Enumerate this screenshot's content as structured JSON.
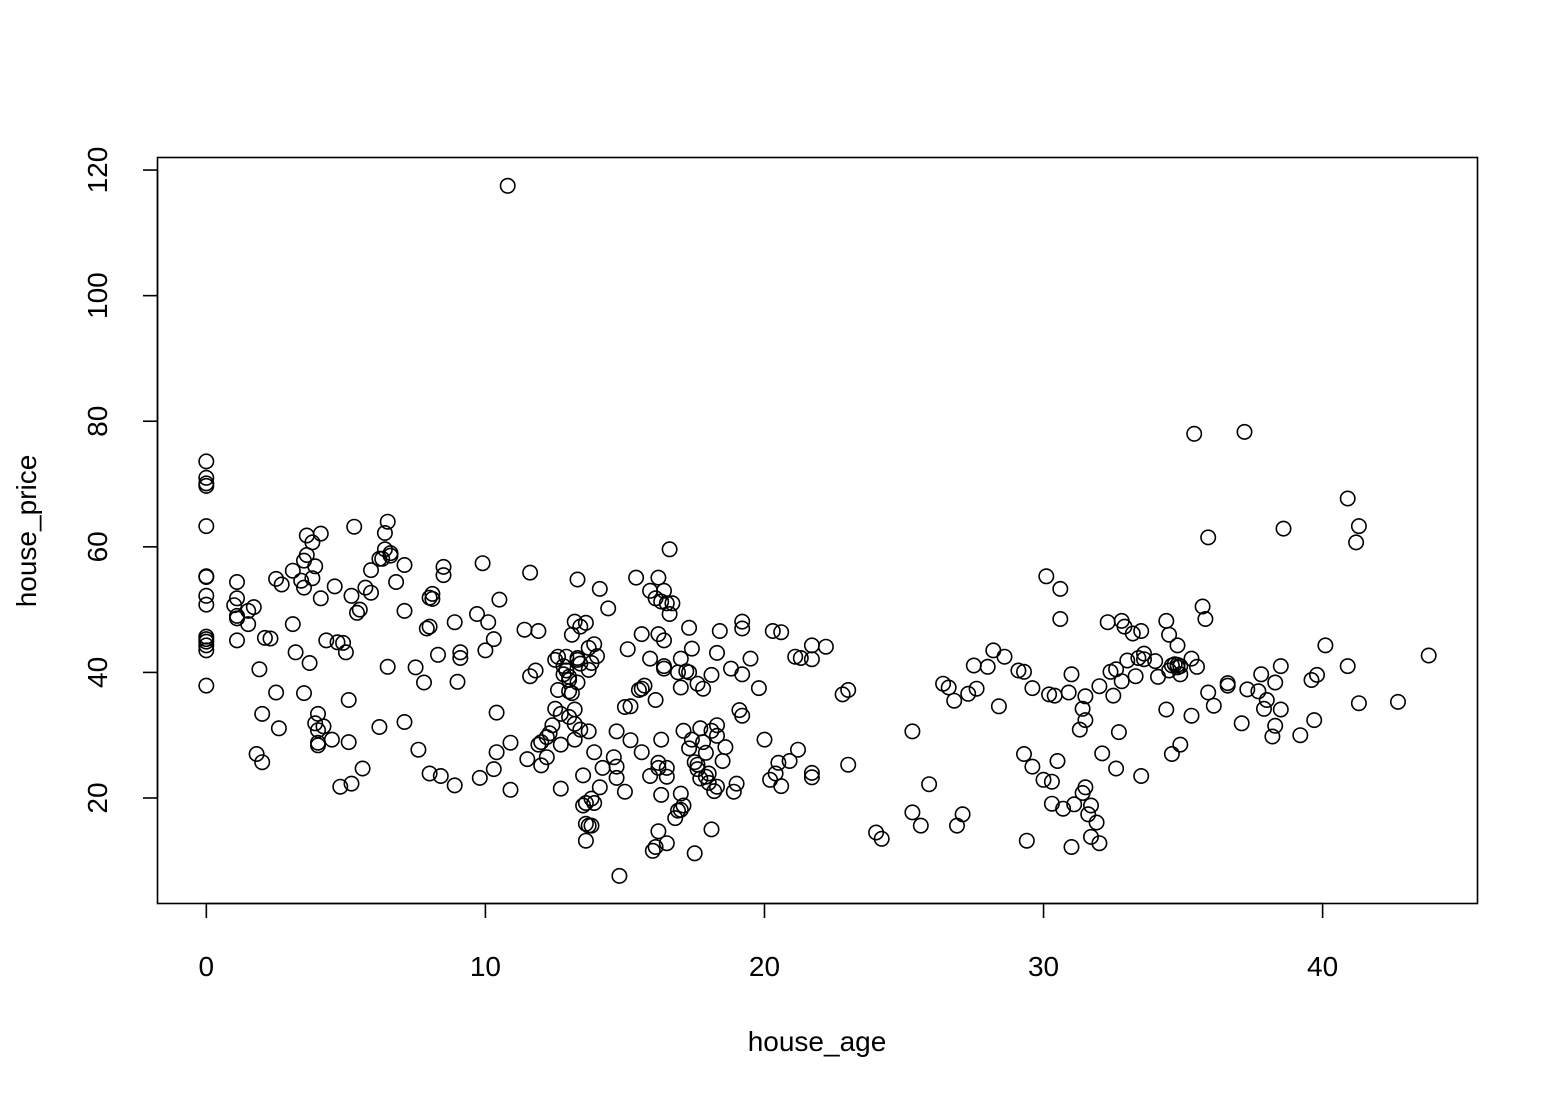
{
  "chart_data": {
    "type": "scatter",
    "title": "",
    "xlabel": "house_age",
    "ylabel": "house_price",
    "xlim": [
      -1.75,
      45.55
    ],
    "ylim": [
      3.2,
      122.0
    ],
    "x_ticks": [
      0,
      10,
      20,
      30,
      40
    ],
    "y_ticks": [
      20,
      40,
      60,
      80,
      100,
      120
    ],
    "grid": false,
    "legend": "none",
    "marker": "open-circle",
    "colors": {
      "points": "#000000",
      "axes": "#000000",
      "background": "#ffffff"
    },
    "points": [
      [
        0,
        73.6
      ],
      [
        0,
        71.0
      ],
      [
        0,
        70.1
      ],
      [
        0,
        69.7
      ],
      [
        0,
        63.3
      ],
      [
        0,
        55.3
      ],
      [
        0,
        55.2
      ],
      [
        0,
        52.2
      ],
      [
        0,
        50.8
      ],
      [
        0,
        45.7
      ],
      [
        0,
        45.3
      ],
      [
        0,
        44.9
      ],
      [
        0,
        44.3
      ],
      [
        0,
        43.5
      ],
      [
        0,
        37.9
      ],
      [
        1.0,
        50.7
      ],
      [
        1.1,
        54.4
      ],
      [
        1.1,
        51.8
      ],
      [
        1.1,
        49.0
      ],
      [
        1.1,
        48.6
      ],
      [
        1.1,
        45.1
      ],
      [
        1.5,
        47.7
      ],
      [
        1.5,
        49.8
      ],
      [
        1.7,
        50.4
      ],
      [
        1.8,
        27.0
      ],
      [
        1.9,
        40.5
      ],
      [
        2.0,
        33.4
      ],
      [
        2.0,
        25.7
      ],
      [
        2.1,
        45.5
      ],
      [
        2.3,
        45.4
      ],
      [
        2.5,
        54.9
      ],
      [
        2.5,
        36.8
      ],
      [
        2.6,
        31.1
      ],
      [
        2.7,
        54.0
      ],
      [
        3.1,
        56.2
      ],
      [
        3.1,
        47.7
      ],
      [
        3.2,
        43.2
      ],
      [
        3.4,
        54.6
      ],
      [
        3.5,
        53.5
      ],
      [
        3.5,
        57.8
      ],
      [
        3.5,
        36.7
      ],
      [
        3.6,
        61.8
      ],
      [
        3.6,
        58.7
      ],
      [
        3.7,
        41.5
      ],
      [
        3.8,
        60.7
      ],
      [
        3.8,
        55.0
      ],
      [
        3.9,
        56.9
      ],
      [
        3.9,
        31.9
      ],
      [
        4.0,
        33.4
      ],
      [
        4.0,
        28.4
      ],
      [
        4.0,
        28.8
      ],
      [
        4.0,
        30.8
      ],
      [
        4.1,
        51.8
      ],
      [
        4.1,
        62.1
      ],
      [
        4.2,
        31.4
      ],
      [
        4.3,
        45.1
      ],
      [
        4.5,
        29.3
      ],
      [
        4.6,
        53.7
      ],
      [
        4.7,
        44.8
      ],
      [
        4.8,
        21.8
      ],
      [
        4.9,
        44.7
      ],
      [
        5.0,
        43.2
      ],
      [
        5.1,
        28.9
      ],
      [
        5.1,
        35.6
      ],
      [
        5.2,
        22.3
      ],
      [
        5.2,
        52.2
      ],
      [
        5.3,
        63.2
      ],
      [
        5.4,
        49.5
      ],
      [
        5.5,
        50.0
      ],
      [
        5.6,
        24.7
      ],
      [
        5.7,
        53.5
      ],
      [
        5.9,
        56.3
      ],
      [
        5.9,
        52.7
      ],
      [
        6.2,
        31.3
      ],
      [
        6.2,
        58.1
      ],
      [
        6.3,
        58.1
      ],
      [
        6.4,
        59.6
      ],
      [
        6.4,
        62.2
      ],
      [
        6.5,
        64.0
      ],
      [
        6.5,
        40.9
      ],
      [
        6.6,
        59.0
      ],
      [
        6.6,
        58.6
      ],
      [
        6.8,
        54.4
      ],
      [
        7.1,
        57.1
      ],
      [
        7.1,
        49.8
      ],
      [
        7.1,
        32.1
      ],
      [
        7.5,
        40.8
      ],
      [
        7.6,
        27.7
      ],
      [
        7.8,
        38.4
      ],
      [
        7.9,
        47.0
      ],
      [
        8.0,
        47.3
      ],
      [
        8.0,
        51.9
      ],
      [
        8.0,
        23.9
      ],
      [
        8.1,
        52.5
      ],
      [
        8.1,
        51.7
      ],
      [
        8.3,
        42.8
      ],
      [
        8.4,
        23.5
      ],
      [
        8.5,
        56.8
      ],
      [
        8.5,
        55.5
      ],
      [
        8.9,
        48.0
      ],
      [
        8.9,
        22.0
      ],
      [
        9.0,
        38.5
      ],
      [
        9.1,
        43.2
      ],
      [
        9.1,
        42.3
      ],
      [
        9.7,
        49.3
      ],
      [
        9.8,
        23.2
      ],
      [
        9.9,
        57.4
      ],
      [
        10.0,
        43.5
      ],
      [
        10.1,
        48.0
      ],
      [
        10.3,
        24.6
      ],
      [
        10.3,
        45.3
      ],
      [
        10.4,
        27.3
      ],
      [
        10.4,
        33.6
      ],
      [
        10.5,
        51.6
      ],
      [
        10.8,
        117.5
      ],
      [
        10.9,
        21.3
      ],
      [
        10.9,
        28.8
      ],
      [
        11.4,
        46.8
      ],
      [
        11.5,
        26.2
      ],
      [
        11.6,
        55.9
      ],
      [
        11.6,
        39.4
      ],
      [
        11.8,
        40.3
      ],
      [
        11.9,
        46.6
      ],
      [
        11.9,
        28.5
      ],
      [
        12.0,
        28.9
      ],
      [
        12.0,
        25.2
      ],
      [
        12.2,
        26.5
      ],
      [
        12.2,
        29.7
      ],
      [
        12.3,
        30.3
      ],
      [
        12.4,
        31.6
      ],
      [
        12.5,
        34.2
      ],
      [
        12.5,
        42.0
      ],
      [
        12.6,
        42.5
      ],
      [
        12.6,
        37.2
      ],
      [
        12.7,
        33.4
      ],
      [
        12.7,
        21.5
      ],
      [
        12.7,
        28.5
      ],
      [
        12.8,
        41.0
      ],
      [
        12.8,
        39.7
      ],
      [
        12.9,
        42.5
      ],
      [
        12.9,
        40.3
      ],
      [
        13.0,
        39.3
      ],
      [
        13.0,
        37.0
      ],
      [
        13.0,
        32.9
      ],
      [
        13.0,
        38.8
      ],
      [
        13.1,
        46.0
      ],
      [
        13.1,
        36.7
      ],
      [
        13.2,
        34.1
      ],
      [
        13.2,
        29.3
      ],
      [
        13.2,
        31.8
      ],
      [
        13.2,
        48.1
      ],
      [
        13.3,
        54.8
      ],
      [
        13.3,
        42.3
      ],
      [
        13.3,
        42.0
      ],
      [
        13.3,
        38.4
      ],
      [
        13.4,
        41.4
      ],
      [
        13.4,
        30.9
      ],
      [
        13.4,
        47.3
      ],
      [
        13.5,
        23.6
      ],
      [
        13.5,
        18.8
      ],
      [
        13.6,
        19.2
      ],
      [
        13.6,
        15.9
      ],
      [
        13.6,
        13.2
      ],
      [
        13.6,
        47.9
      ],
      [
        13.7,
        43.9
      ],
      [
        13.7,
        40.4
      ],
      [
        13.7,
        30.6
      ],
      [
        13.7,
        15.6
      ],
      [
        13.8,
        41.5
      ],
      [
        13.8,
        15.6
      ],
      [
        13.8,
        19.9
      ],
      [
        13.9,
        44.5
      ],
      [
        13.9,
        27.3
      ],
      [
        13.9,
        19.2
      ],
      [
        14.0,
        42.6
      ],
      [
        14.1,
        53.3
      ],
      [
        14.1,
        21.7
      ],
      [
        14.2,
        24.8
      ],
      [
        14.4,
        50.2
      ],
      [
        14.6,
        26.5
      ],
      [
        14.7,
        25.0
      ],
      [
        14.7,
        23.2
      ],
      [
        14.7,
        30.6
      ],
      [
        14.8,
        7.6
      ],
      [
        15.0,
        34.5
      ],
      [
        15.0,
        21.0
      ],
      [
        15.1,
        43.7
      ],
      [
        15.2,
        34.6
      ],
      [
        15.2,
        29.2
      ],
      [
        15.4,
        55.1
      ],
      [
        15.5,
        37.2
      ],
      [
        15.6,
        37.4
      ],
      [
        15.6,
        46.1
      ],
      [
        15.6,
        27.3
      ],
      [
        15.7,
        37.9
      ],
      [
        15.9,
        53.0
      ],
      [
        15.9,
        42.2
      ],
      [
        15.9,
        23.5
      ],
      [
        16.0,
        11.6
      ],
      [
        16.1,
        51.8
      ],
      [
        16.1,
        35.6
      ],
      [
        16.1,
        12.2
      ],
      [
        16.2,
        55.1
      ],
      [
        16.2,
        46.1
      ],
      [
        16.2,
        24.8
      ],
      [
        16.2,
        25.6
      ],
      [
        16.2,
        14.7
      ],
      [
        16.3,
        51.3
      ],
      [
        16.3,
        29.3
      ],
      [
        16.3,
        20.5
      ],
      [
        16.4,
        53.0
      ],
      [
        16.4,
        45.1
      ],
      [
        16.4,
        41.0
      ],
      [
        16.4,
        40.6
      ],
      [
        16.5,
        51.0
      ],
      [
        16.5,
        23.4
      ],
      [
        16.5,
        24.8
      ],
      [
        16.5,
        12.8
      ],
      [
        16.6,
        49.3
      ],
      [
        16.6,
        59.6
      ],
      [
        16.7,
        51.0
      ],
      [
        16.8,
        16.8
      ],
      [
        16.9,
        18.0
      ],
      [
        16.9,
        40.0
      ],
      [
        17.0,
        37.6
      ],
      [
        17.0,
        42.2
      ],
      [
        17.0,
        20.7
      ],
      [
        17.0,
        18.1
      ],
      [
        17.1,
        18.8
      ],
      [
        17.1,
        30.7
      ],
      [
        17.2,
        40.2
      ],
      [
        17.3,
        47.1
      ],
      [
        17.3,
        27.9
      ],
      [
        17.3,
        40.0
      ],
      [
        17.4,
        43.8
      ],
      [
        17.4,
        29.3
      ],
      [
        17.5,
        25.7
      ],
      [
        17.5,
        11.2
      ],
      [
        17.6,
        24.6
      ],
      [
        17.6,
        38.2
      ],
      [
        17.6,
        25.3
      ],
      [
        17.7,
        31.1
      ],
      [
        17.7,
        23.1
      ],
      [
        17.8,
        28.9
      ],
      [
        17.8,
        37.4
      ],
      [
        17.9,
        23.4
      ],
      [
        17.9,
        27.2
      ],
      [
        18.0,
        23.9
      ],
      [
        18.0,
        22.4
      ],
      [
        18.1,
        39.6
      ],
      [
        18.1,
        15.0
      ],
      [
        18.1,
        30.7
      ],
      [
        18.2,
        21.1
      ],
      [
        18.3,
        29.9
      ],
      [
        18.3,
        31.6
      ],
      [
        18.3,
        43.1
      ],
      [
        18.3,
        21.8
      ],
      [
        18.4,
        46.6
      ],
      [
        18.5,
        25.9
      ],
      [
        18.6,
        28.1
      ],
      [
        18.8,
        40.6
      ],
      [
        18.9,
        21.0
      ],
      [
        19.0,
        22.3
      ],
      [
        19.1,
        34.0
      ],
      [
        19.2,
        33.1
      ],
      [
        19.2,
        48.1
      ],
      [
        19.2,
        47.0
      ],
      [
        19.2,
        39.7
      ],
      [
        19.5,
        42.2
      ],
      [
        19.8,
        37.5
      ],
      [
        20.0,
        29.3
      ],
      [
        20.2,
        22.9
      ],
      [
        20.3,
        46.6
      ],
      [
        20.4,
        23.9
      ],
      [
        20.5,
        25.6
      ],
      [
        20.6,
        46.4
      ],
      [
        20.6,
        21.9
      ],
      [
        20.9,
        25.9
      ],
      [
        21.1,
        42.5
      ],
      [
        21.2,
        27.7
      ],
      [
        21.3,
        42.3
      ],
      [
        21.7,
        42.1
      ],
      [
        21.7,
        44.3
      ],
      [
        21.7,
        23.3
      ],
      [
        21.7,
        24.0
      ],
      [
        22.2,
        44.1
      ],
      [
        22.8,
        36.5
      ],
      [
        23.0,
        37.2
      ],
      [
        23.0,
        25.3
      ],
      [
        24.0,
        14.5
      ],
      [
        24.2,
        13.5
      ],
      [
        25.3,
        30.6
      ],
      [
        25.3,
        17.7
      ],
      [
        25.6,
        15.6
      ],
      [
        25.9,
        22.2
      ],
      [
        26.4,
        38.2
      ],
      [
        26.6,
        37.6
      ],
      [
        26.8,
        35.5
      ],
      [
        26.9,
        15.6
      ],
      [
        27.1,
        17.4
      ],
      [
        27.3,
        36.6
      ],
      [
        27.5,
        41.1
      ],
      [
        27.6,
        37.4
      ],
      [
        28.0,
        40.9
      ],
      [
        28.2,
        43.5
      ],
      [
        28.4,
        34.6
      ],
      [
        28.6,
        42.5
      ],
      [
        29.1,
        40.3
      ],
      [
        29.3,
        40.1
      ],
      [
        29.3,
        27.0
      ],
      [
        29.4,
        13.2
      ],
      [
        29.6,
        37.5
      ],
      [
        29.6,
        25.0
      ],
      [
        30.0,
        22.9
      ],
      [
        30.1,
        55.3
      ],
      [
        30.2,
        36.5
      ],
      [
        30.3,
        22.6
      ],
      [
        30.3,
        19.1
      ],
      [
        30.4,
        36.3
      ],
      [
        30.5,
        25.9
      ],
      [
        30.6,
        53.3
      ],
      [
        30.6,
        48.5
      ],
      [
        30.7,
        18.3
      ],
      [
        30.9,
        36.8
      ],
      [
        31.0,
        39.7
      ],
      [
        31.0,
        12.2
      ],
      [
        31.1,
        19.0
      ],
      [
        31.3,
        30.9
      ],
      [
        31.4,
        20.8
      ],
      [
        31.4,
        34.2
      ],
      [
        31.5,
        21.7
      ],
      [
        31.5,
        32.4
      ],
      [
        31.5,
        36.2
      ],
      [
        31.6,
        17.4
      ],
      [
        31.7,
        13.8
      ],
      [
        31.7,
        18.8
      ],
      [
        31.9,
        16.1
      ],
      [
        32.0,
        12.8
      ],
      [
        32.0,
        37.8
      ],
      [
        32.1,
        27.1
      ],
      [
        32.3,
        48.0
      ],
      [
        32.4,
        40.1
      ],
      [
        32.5,
        36.3
      ],
      [
        32.6,
        40.5
      ],
      [
        32.6,
        24.7
      ],
      [
        32.7,
        30.5
      ],
      [
        32.8,
        48.2
      ],
      [
        32.8,
        38.6
      ],
      [
        32.9,
        47.3
      ],
      [
        33.0,
        41.9
      ],
      [
        33.2,
        46.2
      ],
      [
        33.3,
        39.4
      ],
      [
        33.4,
        42.3
      ],
      [
        33.5,
        46.6
      ],
      [
        33.5,
        23.5
      ],
      [
        33.6,
        42.1
      ],
      [
        33.6,
        43.0
      ],
      [
        34.0,
        41.8
      ],
      [
        34.1,
        39.3
      ],
      [
        34.4,
        48.2
      ],
      [
        34.4,
        34.1
      ],
      [
        34.5,
        40.3
      ],
      [
        34.5,
        46.0
      ],
      [
        34.6,
        27.0
      ],
      [
        34.6,
        41.1
      ],
      [
        34.7,
        41.3
      ],
      [
        34.8,
        44.3
      ],
      [
        34.8,
        40.8
      ],
      [
        34.8,
        41.2
      ],
      [
        34.9,
        28.5
      ],
      [
        34.9,
        39.7
      ],
      [
        34.9,
        41.0
      ],
      [
        35.3,
        42.2
      ],
      [
        35.3,
        33.1
      ],
      [
        35.4,
        78.0
      ],
      [
        35.5,
        40.9
      ],
      [
        35.7,
        50.5
      ],
      [
        35.8,
        48.5
      ],
      [
        35.9,
        61.5
      ],
      [
        35.9,
        36.8
      ],
      [
        36.1,
        34.7
      ],
      [
        36.6,
        38.3
      ],
      [
        36.6,
        37.9
      ],
      [
        37.1,
        31.9
      ],
      [
        37.2,
        78.3
      ],
      [
        37.3,
        37.3
      ],
      [
        37.7,
        37.0
      ],
      [
        37.8,
        39.7
      ],
      [
        37.9,
        34.2
      ],
      [
        38.0,
        35.6
      ],
      [
        38.2,
        29.8
      ],
      [
        38.3,
        31.5
      ],
      [
        38.3,
        38.4
      ],
      [
        38.5,
        41.0
      ],
      [
        38.5,
        34.1
      ],
      [
        38.6,
        62.9
      ],
      [
        39.2,
        30.0
      ],
      [
        39.6,
        38.8
      ],
      [
        39.7,
        32.4
      ],
      [
        39.8,
        39.6
      ],
      [
        40.1,
        44.3
      ],
      [
        40.9,
        67.7
      ],
      [
        40.9,
        41.0
      ],
      [
        41.2,
        60.7
      ],
      [
        41.3,
        63.3
      ],
      [
        41.3,
        35.1
      ],
      [
        42.7,
        35.3
      ],
      [
        43.8,
        42.7
      ]
    ]
  }
}
